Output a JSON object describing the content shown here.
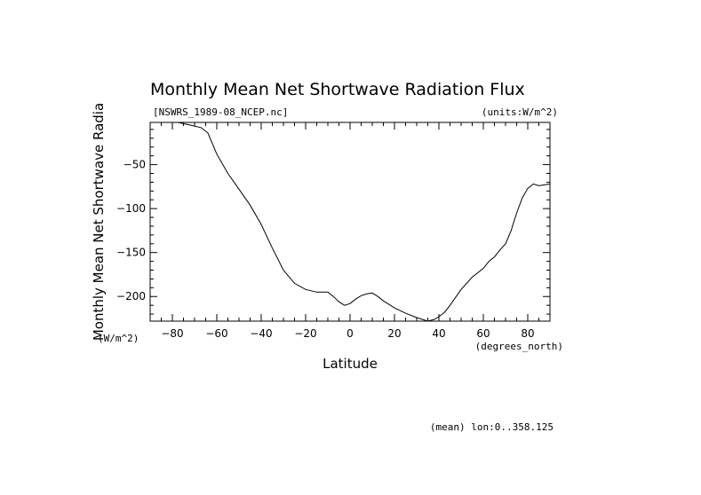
{
  "chart_data": {
    "type": "line",
    "title": "Monthly Mean Net Shortwave Radiation Flux",
    "file_label": "[NSWRS_1989-08_NCEP.nc]",
    "units_label": "(units:W/m^2)",
    "ylabel": "Monthly Mean Net Shortwave Radia",
    "ylabel_units": "(W/m^2)",
    "xlabel": "Latitude",
    "xlabel_units": "(degrees_north)",
    "footer": "(mean) lon:0..358.125",
    "xlim": [
      -90,
      90
    ],
    "ylim": [
      -228,
      -2
    ],
    "x_ticks": [
      -80,
      -60,
      -40,
      -20,
      0,
      20,
      40,
      60,
      80
    ],
    "y_ticks": [
      -50,
      -100,
      -150,
      -200
    ],
    "series": [
      {
        "name": "NSWRS",
        "x": [
          -77.5,
          -72,
          -67,
          -64,
          -60,
          -55,
          -50,
          -45,
          -40,
          -35,
          -30,
          -25,
          -20,
          -15,
          -10,
          -7.5,
          -5,
          -2.5,
          0,
          2.5,
          5,
          7.5,
          10,
          12.5,
          15,
          20,
          25,
          30,
          35,
          38,
          40,
          42.5,
          45,
          50,
          55,
          60,
          62.5,
          65,
          67.5,
          70,
          72.5,
          75,
          77.5,
          80,
          82.5,
          85,
          87.5,
          90
        ],
        "y": [
          -2,
          -5,
          -8,
          -14,
          -38,
          -60,
          -78,
          -96,
          -118,
          -145,
          -170,
          -185,
          -192,
          -195,
          -195,
          -200,
          -206,
          -210,
          -208,
          -203,
          -199,
          -197,
          -196,
          -200,
          -205,
          -213,
          -219,
          -224,
          -228,
          -226,
          -223,
          -218,
          -210,
          -192,
          -178,
          -168,
          -160,
          -155,
          -147,
          -140,
          -125,
          -105,
          -88,
          -77,
          -72,
          -74,
          -73,
          -72
        ]
      }
    ]
  }
}
